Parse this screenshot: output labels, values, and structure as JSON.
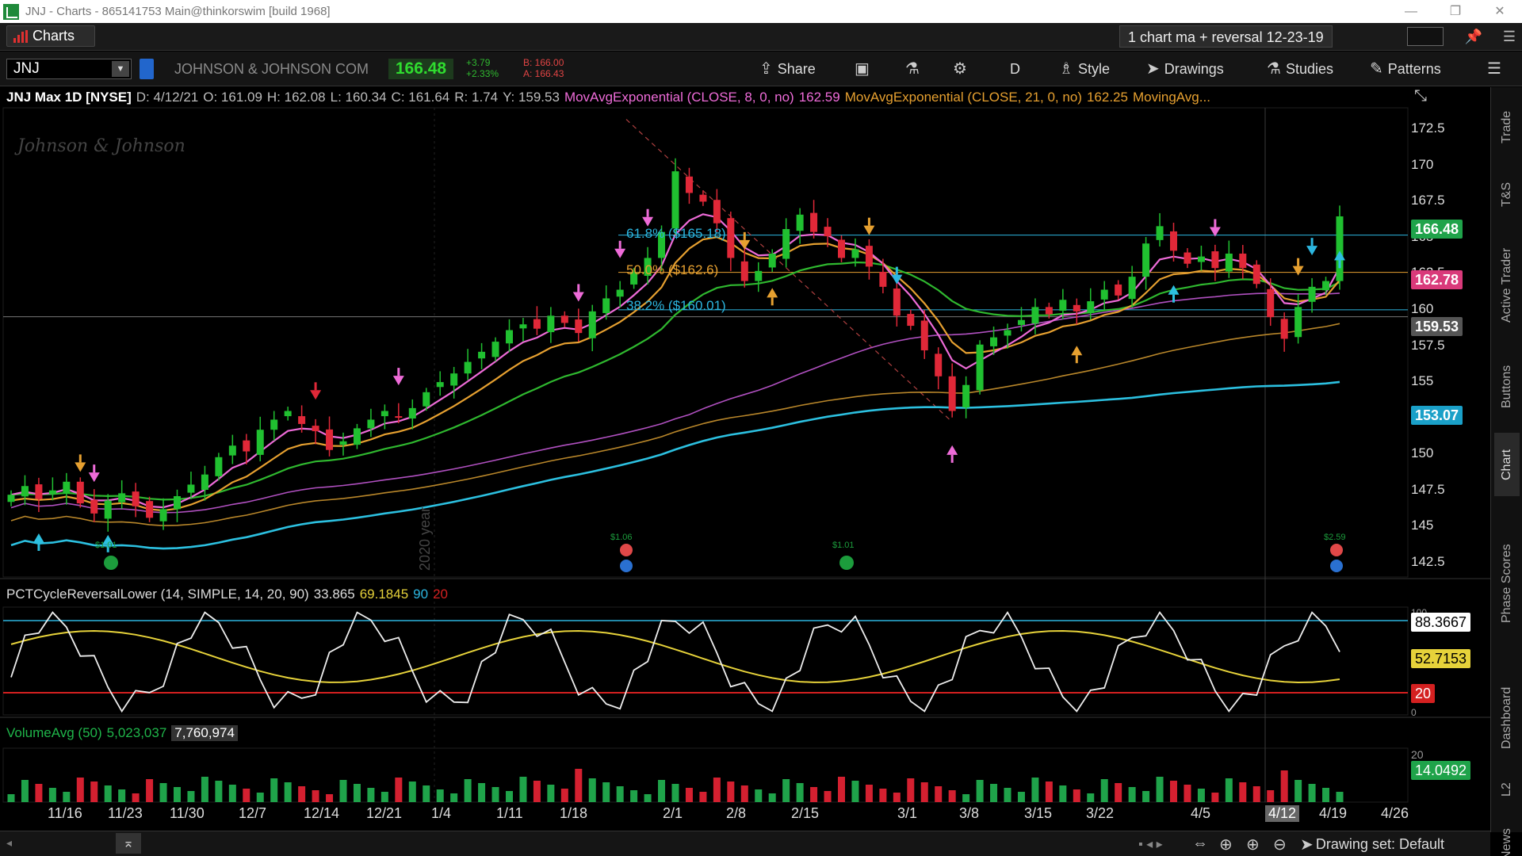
{
  "window": {
    "title": "JNJ - Charts - 865141753 Main@thinkorswim [build 1968]"
  },
  "top_bar": {
    "charts_label": "Charts",
    "grid_name": "1 chart ma + reversal 12-23-19"
  },
  "symbol_bar": {
    "symbol": "JNJ",
    "company": "JOHNSON & JOHNSON COM",
    "last": "166.48",
    "change": "+3.79",
    "change_pct": "+2.33%",
    "bid": "B: 166.00",
    "ask": "A: 166.43",
    "buttons": {
      "share": "Share",
      "timeframe": "D",
      "style": "Style",
      "drawings": "Drawings",
      "studies": "Studies",
      "patterns": "Patterns"
    }
  },
  "header": {
    "title": "JNJ Max 1D [NYSE]",
    "date": "D: 4/12/21",
    "open": "O: 161.09",
    "high": "H: 162.08",
    "low": "L: 160.34",
    "close": "C: 161.64",
    "range": "R: 1.74",
    "y": "Y: 159.53",
    "ema8": "MovAvgExponential (CLOSE, 8, 0, no)",
    "ema8_val": "162.59",
    "ema21": "MovAvgExponential (CLOSE, 21, 0, no)",
    "ema21_val": "162.25",
    "ma_more": "MovingAvg..."
  },
  "watermark": "Johnson & Johnson",
  "fib": {
    "f618": "61.8% ($165.18)",
    "f50": "50.0% ($162.6)",
    "f382": "38.2% ($160.01)"
  },
  "year_marker": "2020 year",
  "price_tags": [
    {
      "label": "166.48",
      "color": "#1fa34a"
    },
    {
      "label": "162.78",
      "color": "#d93a7a"
    },
    {
      "label": "159.53",
      "color": "#555555"
    },
    {
      "label": "153.07",
      "color": "#1aa0c8"
    }
  ],
  "y_ticks": [
    "172.5",
    "170",
    "167.5",
    "165",
    "162.5",
    "160",
    "157.5",
    "155",
    "152.5",
    "150",
    "147.5",
    "145",
    "142.5"
  ],
  "events": {
    "div1": "$1.01",
    "div2": "$1.06",
    "div3": "$1.01",
    "div4": "$2.59"
  },
  "oscillator": {
    "name": "PCTCycleReversalLower (14, SIMPLE, 14, 20, 90)",
    "v1": "33.865",
    "v2": "69.1845",
    "v3": "90",
    "v4": "20",
    "tags": [
      {
        "label": "88.3667",
        "color": "#ffffff",
        "text": "#000000"
      },
      {
        "label": "52.7153",
        "color": "#e6d23a",
        "text": "#000000"
      },
      {
        "label": "20",
        "color": "#d42020",
        "text": "#ffffff"
      }
    ],
    "ticks": [
      "100",
      "0"
    ]
  },
  "volume": {
    "name": "VolumeAvg (50)",
    "avg": "5,023,037",
    "vol": "7,760,974",
    "tag": "14.0492",
    "tick": "20"
  },
  "x_ticks": [
    "11/16",
    "11/23",
    "11/30",
    "12/7",
    "12/14",
    "12/21",
    "1/4",
    "1/11",
    "1/18",
    "2/1",
    "2/8",
    "2/15",
    "3/1",
    "3/8",
    "3/15",
    "3/22",
    "4/5",
    "4/12",
    "4/19",
    "4/26"
  ],
  "side_tabs": [
    "Trade",
    "T&S",
    "Active Trader",
    "Buttons",
    "Chart",
    "Phase Scores",
    "Dashboard",
    "L2",
    "News"
  ],
  "bottom": {
    "drawing_set": "Drawing set: Default"
  },
  "chart_data": {
    "type": "candlestick",
    "symbol": "JNJ",
    "timeframe": "D",
    "ylim": [
      141.5,
      174
    ],
    "x_axis_dates": [
      "11/16",
      "11/23",
      "11/30",
      "12/7",
      "12/14",
      "12/21",
      "1/4",
      "1/11",
      "1/18",
      "2/1",
      "2/8",
      "2/15",
      "3/1",
      "3/8",
      "3/15",
      "3/22",
      "4/5",
      "4/12",
      "4/19",
      "4/26"
    ],
    "closes": [
      147.2,
      147.8,
      146.9,
      147.5,
      148.1,
      146.6,
      145.9,
      146.8,
      147.3,
      146.4,
      145.6,
      146.2,
      147.1,
      147.9,
      148.6,
      149.8,
      150.6,
      150.2,
      151.7,
      152.4,
      153.0,
      152.1,
      151.6,
      150.3,
      150.9,
      151.8,
      152.4,
      153.0,
      152.6,
      153.2,
      154.3,
      155.0,
      155.6,
      156.4,
      157.1,
      157.8,
      158.6,
      159.0,
      158.7,
      159.6,
      159.1,
      158.4,
      159.9,
      160.8,
      161.4,
      162.6,
      163.6,
      165.4,
      169.6,
      168.1,
      167.5,
      166.0,
      163.6,
      162.0,
      162.7,
      163.9,
      165.6,
      166.6,
      165.4,
      165.1,
      163.6,
      164.2,
      163.0,
      161.6,
      159.6,
      158.9,
      157.2,
      155.4,
      153.0,
      154.8,
      157.6,
      158.1,
      158.6,
      159.3,
      160.2,
      159.7,
      160.7,
      159.9,
      160.6,
      161.4,
      161.0,
      162.3,
      164.6,
      165.8,
      164.1,
      163.2,
      163.7,
      162.9,
      163.9,
      162.9,
      161.8,
      159.5,
      158.0,
      160.2,
      161.6,
      162.0,
      166.48
    ],
    "series": [
      {
        "name": "MovAvgExponential (CLOSE, 8, 0, no)",
        "last": 162.59
      },
      {
        "name": "MovAvgExponential (CLOSE, 21, 0, no)",
        "last": 162.25
      }
    ],
    "fib_levels": [
      {
        "label": "61.8%",
        "value": 165.18
      },
      {
        "label": "50.0%",
        "value": 162.6
      },
      {
        "label": "38.2%",
        "value": 160.01
      }
    ],
    "last_price": 166.48
  }
}
